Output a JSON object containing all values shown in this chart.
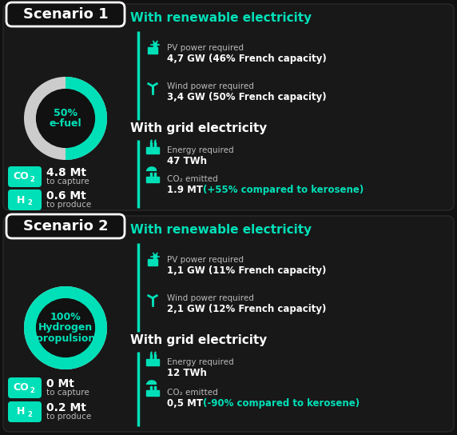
{
  "bg_color": "#111111",
  "panel_color": "#1c1c1c",
  "teal": "#00e0b8",
  "white": "#ffffff",
  "gray_text": "#bbbbbb",
  "donut_bg": "#cccccc",
  "scenario1": {
    "label": "Scenario 1",
    "donut_pct": 50,
    "donut_label_lines": [
      "50%",
      "e-fuel"
    ],
    "co2_val": "4.8 Mt",
    "co2_sub": "to capture",
    "h2_val": "0.6 Mt",
    "h2_sub": "to produce",
    "renew_title": "With renewable electricity",
    "pv_label": "PV power required",
    "pv_val": "4,7 GW (46% French capacity)",
    "wind_label": "Wind power required",
    "wind_val": "3,4 GW (50% French capacity)",
    "grid_title": "With grid electricity",
    "energy_label": "Energy required",
    "energy_val": "47 TWh",
    "co2emit_label": "CO₂ emitted",
    "co2emit_val": "1.9 MT ",
    "co2emit_pct": "(+55% compared to kerosene)",
    "co2emit_pct_color": "#00e0b8"
  },
  "scenario2": {
    "label": "Scenario 2",
    "donut_pct": 100,
    "donut_label_lines": [
      "100%",
      "Hydrogen",
      "propulsion"
    ],
    "co2_val": "0 Mt",
    "co2_sub": "to capture",
    "h2_val": "0.2 Mt",
    "h2_sub": "to produce",
    "renew_title": "With renewable electricity",
    "pv_label": "PV power required",
    "pv_val": "1,1 GW (11% French capacity)",
    "wind_label": "Wind power required",
    "wind_val": "2,1 GW (12% French capacity)",
    "grid_title": "With grid electricity",
    "energy_label": "Energy required",
    "energy_val": "12 TWh",
    "co2emit_label": "CO₂ emitted",
    "co2emit_val": "0,5 MT ",
    "co2emit_pct": "(-90% compared to kerosene)",
    "co2emit_pct_color": "#00e0b8"
  },
  "fig_w": 5.72,
  "fig_h": 5.44,
  "dpi": 100
}
